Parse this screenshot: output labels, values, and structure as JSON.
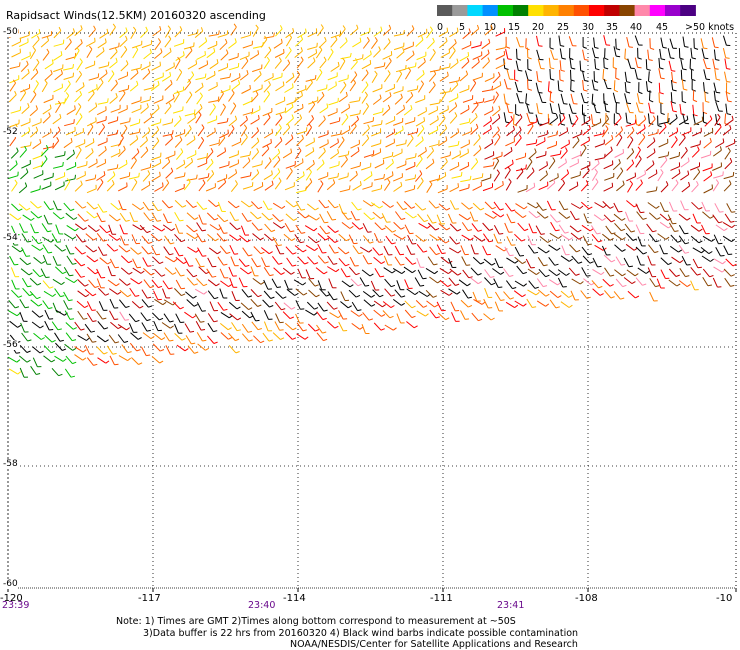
{
  "title": "Rapidsact Winds(12.5KM) 20160320 ascending",
  "legend": {
    "colors": [
      "#5a5a5a",
      "#9a9a9a",
      "#00d8ff",
      "#0090ff",
      "#00c000",
      "#008000",
      "#ffe000",
      "#ffb400",
      "#ff8000",
      "#ff5000",
      "#ff0000",
      "#c00000",
      "#884400",
      "#ff88aa",
      "#ff00ff",
      "#9900cc",
      "#4b0082"
    ],
    "labels": [
      "0",
      "5",
      "10",
      "15",
      "20",
      "25",
      "30",
      "35",
      "40",
      "45",
      ">50 knots"
    ]
  },
  "axes": {
    "lon_labels": [
      "-120",
      "-117",
      "-114",
      "-111",
      "-108",
      "-10"
    ],
    "lat_labels": [
      "-50",
      "-52",
      "-54",
      "-56",
      "-58",
      "-60"
    ],
    "time_labels": [
      "23:39",
      "23:40",
      "23:41"
    ]
  },
  "notes": [
    "Note: 1) Times are GMT 2)Times along bottom correspond to measurement at ~50S",
    "3)Data buffer is 22 hrs from 20160320 4) Black wind barbs indicate possible contamination",
    "NOAA/NESDIS/Center for Satellite Applications and Research"
  ]
}
